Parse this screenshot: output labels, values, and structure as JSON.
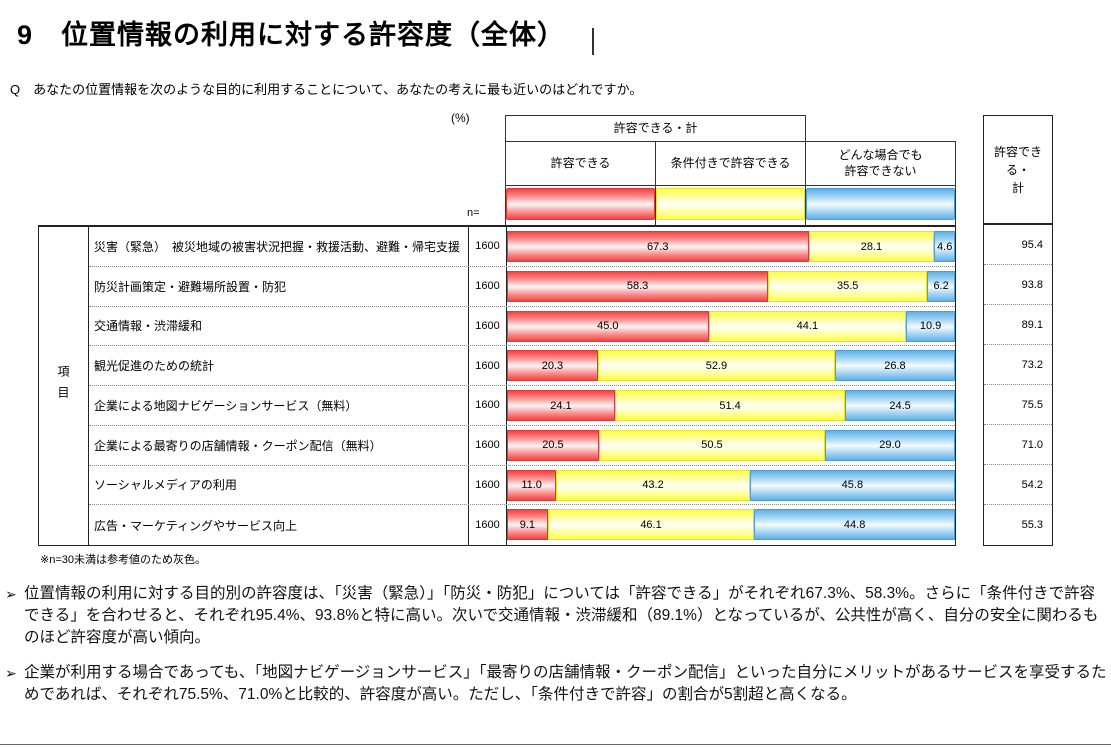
{
  "page": {
    "title": "9　位置情報の利用に対する許容度（全体）",
    "question": "Q　あなたの位置情報を次のような目的に利用することについて、あなたの考えに最も近いのはどれですか。",
    "note": "※n=30未満は参考値のため灰色。",
    "bullet_marker": "➢",
    "bullets": [
      "位置情報の利用に対する目的別の許容度は、「災害（緊急）」「防災・防犯」については「許容できる」がそれぞれ67.3%、58.3%。さらに「条件付きで許容できる」を合わせると、それぞれ95.4%、93.8%と特に高い。次いで交通情報・渋滞緩和（89.1%）となっているが、公共性が高く、自分の安全に関わるものほど許容度が高い傾向。",
      "企業が利用する場合であっても、「地図ナビゲージョンサービス」「最寄りの店舗情報・クーポン配信」といった自分にメリットがあるサービスを享受するためであれば、それぞれ75.5%、71.0%と比較的、許容度が高い。ただし、「条件付きで許容」の割合が5割超と高くなる。"
    ]
  },
  "chart_data": {
    "type": "bar",
    "orientation": "horizontal-stacked",
    "unit_label": "(%)",
    "n_label": "n=",
    "xlim": [
      0,
      100
    ],
    "legend_position": "top",
    "group_header": "許容できる・計",
    "total_header": "許容できる・\n計",
    "row_group_label": "項目",
    "categories": [
      "災害（緊急）　被災地域の被害状況把握・救援活動、避難・帰宅支援",
      "防災計画策定・避難場所設置・防犯",
      "交通情報・渋滞緩和",
      "観光促進のための統計",
      "企業による地図ナビゲーションサービス（無料）",
      "企業による最寄りの店舗情報・クーポン配信（無料）",
      "ソーシャルメディアの利用",
      "広告・マーケティングやサービス向上"
    ],
    "n": [
      1600,
      1600,
      1600,
      1600,
      1600,
      1600,
      1600,
      1600
    ],
    "series": [
      {
        "name": "許容できる",
        "color": "#F64242",
        "values": [
          67.3,
          58.3,
          45.0,
          20.3,
          24.1,
          20.5,
          11.0,
          9.1
        ]
      },
      {
        "name": "条件付きで許容できる",
        "color": "#FFFF42",
        "values": [
          28.1,
          35.5,
          44.1,
          52.9,
          51.4,
          50.5,
          43.2,
          46.1
        ]
      },
      {
        "name": "どんな場合でも\n許容できない",
        "color": "#5FB2E8",
        "values": [
          4.6,
          6.2,
          10.9,
          26.8,
          24.5,
          29.0,
          45.8,
          44.8
        ]
      }
    ],
    "totals": [
      95.4,
      93.8,
      89.1,
      73.2,
      75.5,
      71.0,
      54.2,
      55.3
    ]
  }
}
